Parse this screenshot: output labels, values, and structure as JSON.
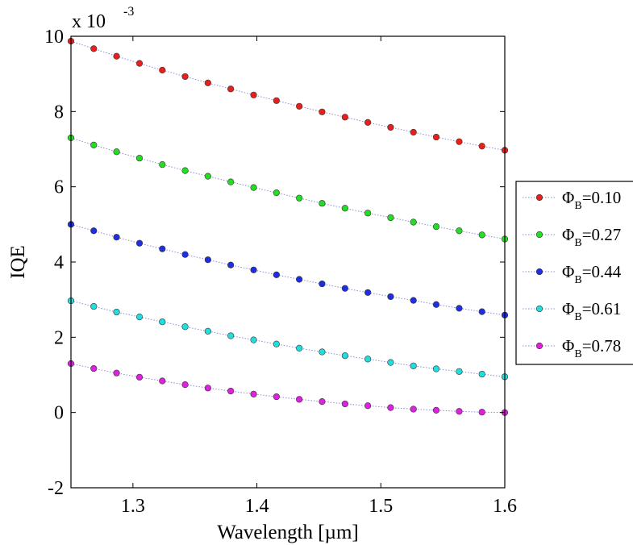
{
  "chart_data": {
    "type": "scatter",
    "title": "",
    "xlabel": "Wavelength [µm]",
    "ylabel": "IQE",
    "y_multiplier_prefix": "x 10",
    "y_multiplier_exponent": "-3",
    "xlim": [
      1.25,
      1.6
    ],
    "ylim": [
      -2,
      10
    ],
    "xticks": [
      1.3,
      1.4,
      1.5,
      1.6
    ],
    "xtick_labels": [
      "1.3",
      "1.4",
      "1.5",
      "1.6"
    ],
    "yticks": [
      -2,
      0,
      2,
      4,
      6,
      8,
      10
    ],
    "ytick_labels": [
      "-2",
      "0",
      "2",
      "4",
      "6",
      "8",
      "10"
    ],
    "grid": false,
    "legend_position": "right",
    "x": [
      1.25,
      1.2684,
      1.2868,
      1.3053,
      1.3237,
      1.3421,
      1.3605,
      1.3789,
      1.3974,
      1.4158,
      1.4342,
      1.4526,
      1.4711,
      1.4895,
      1.5079,
      1.5263,
      1.5447,
      1.5632,
      1.5816,
      1.6
    ],
    "series": [
      {
        "name_symbol": "Φ",
        "name_sub": "B",
        "name_value": "=0.10",
        "color": "#e8201c",
        "values": [
          9.87,
          9.67,
          9.47,
          9.28,
          9.1,
          8.93,
          8.76,
          8.6,
          8.44,
          8.29,
          8.14,
          7.99,
          7.85,
          7.71,
          7.58,
          7.45,
          7.32,
          7.2,
          7.08,
          6.97
        ]
      },
      {
        "name_symbol": "Φ",
        "name_sub": "B",
        "name_value": "=0.27",
        "color": "#22dd22",
        "values": [
          7.3,
          7.11,
          6.93,
          6.76,
          6.59,
          6.43,
          6.28,
          6.13,
          5.98,
          5.84,
          5.7,
          5.56,
          5.43,
          5.3,
          5.18,
          5.06,
          4.94,
          4.83,
          4.72,
          4.61
        ]
      },
      {
        "name_symbol": "Φ",
        "name_sub": "B",
        "name_value": "=0.44",
        "color": "#1e2ee0",
        "values": [
          5.0,
          4.83,
          4.66,
          4.5,
          4.35,
          4.2,
          4.06,
          3.92,
          3.79,
          3.66,
          3.54,
          3.42,
          3.3,
          3.19,
          3.08,
          2.98,
          2.87,
          2.77,
          2.68,
          2.59
        ]
      },
      {
        "name_symbol": "Φ",
        "name_sub": "B",
        "name_value": "=0.61",
        "color": "#22dddd",
        "values": [
          2.97,
          2.82,
          2.67,
          2.54,
          2.41,
          2.28,
          2.16,
          2.04,
          1.93,
          1.82,
          1.71,
          1.61,
          1.51,
          1.42,
          1.33,
          1.24,
          1.16,
          1.09,
          1.02,
          0.95
        ]
      },
      {
        "name_symbol": "Φ",
        "name_sub": "B",
        "name_value": "=0.78",
        "color": "#e020e0",
        "values": [
          1.3,
          1.17,
          1.05,
          0.94,
          0.84,
          0.74,
          0.65,
          0.57,
          0.49,
          0.42,
          0.35,
          0.29,
          0.23,
          0.18,
          0.13,
          0.09,
          0.06,
          0.03,
          0.01,
          0.0
        ]
      }
    ]
  }
}
